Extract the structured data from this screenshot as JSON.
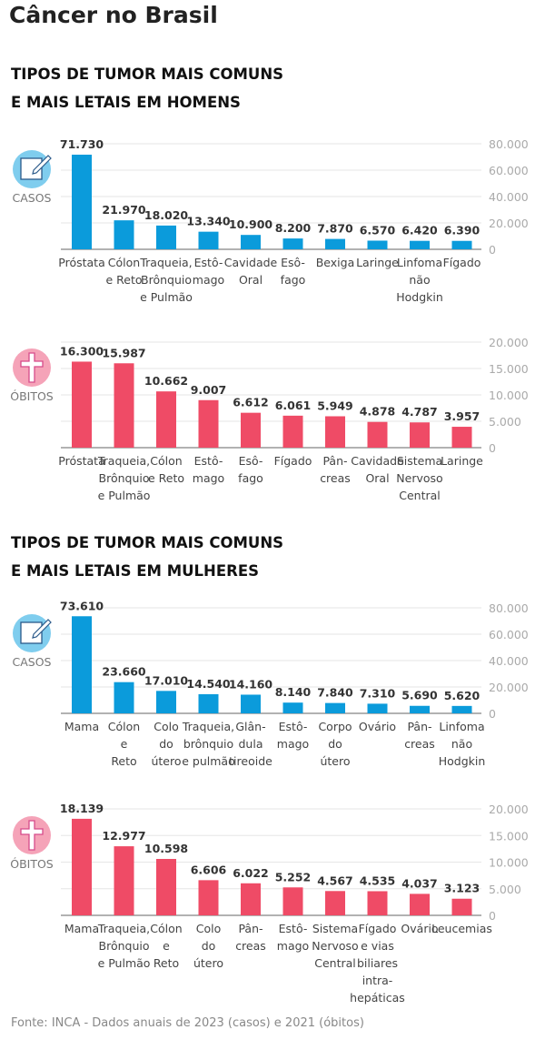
{
  "title": "Câncer no Brasil",
  "sections": [
    {
      "heading_line1": "TIPOS DE TUMOR MAIS COMUNS",
      "heading_line2": "E MAIS LETAIS EM HOMENS"
    },
    {
      "heading_line1": "TIPOS DE TUMOR MAIS COMUNS",
      "heading_line2": "E MAIS LETAIS EM MULHERES"
    }
  ],
  "source": "Fonte: INCA - Dados anuais de 2023 (casos) e 2021 (óbitos)",
  "colors": {
    "casos": "#0b9bdb",
    "obitos": "#ef4b66",
    "casos_icon": "#7fcdee",
    "obitos_icon": "#f5a3b8"
  },
  "chart_data": [
    {
      "type": "bar",
      "label": "CASOS",
      "icon": "notepad-pencil-icon",
      "color": "#0b9bdb",
      "ylim": [
        0,
        80000
      ],
      "yticks": [
        "0",
        "20.000",
        "40.000",
        "60.000",
        "80.000"
      ],
      "grid": true,
      "categories": [
        [
          "Próstata"
        ],
        [
          "Cólon",
          "e Reto"
        ],
        [
          "Traqueia,",
          "Brônquio",
          "e Pulmão"
        ],
        [
          "Estô-",
          "mago"
        ],
        [
          "Cavidade",
          "Oral"
        ],
        [
          "Esô-",
          "fago"
        ],
        [
          "Bexiga"
        ],
        [
          "Laringe"
        ],
        [
          "Linfoma",
          "não",
          "Hodgkin"
        ],
        [
          "Fígado"
        ]
      ],
      "values": [
        71730,
        21970,
        18020,
        13340,
        10900,
        8200,
        7870,
        6570,
        6420,
        6390
      ],
      "value_labels": [
        "71.730",
        "21.970",
        "18.020",
        "13.340",
        "10.900",
        "8.200",
        "7.870",
        "6.570",
        "6.420",
        "6.390"
      ]
    },
    {
      "type": "bar",
      "label": "ÓBITOS",
      "icon": "cross-icon",
      "color": "#ef4b66",
      "ylim": [
        0,
        20000
      ],
      "yticks": [
        "0",
        "5.000",
        "10.000",
        "15.000",
        "20.000"
      ],
      "grid": true,
      "categories": [
        [
          "Próstata"
        ],
        [
          "Traqueia,",
          "Brônquio",
          "e Pulmão"
        ],
        [
          "Cólon",
          "e Reto"
        ],
        [
          "Estô-",
          "mago"
        ],
        [
          "Esô-",
          "fago"
        ],
        [
          "Fígado"
        ],
        [
          "Pân-",
          "creas"
        ],
        [
          "Cavidade",
          "Oral"
        ],
        [
          "Sistema",
          "Nervoso",
          "Central"
        ],
        [
          "Laringe"
        ]
      ],
      "values": [
        16300,
        15987,
        10662,
        9007,
        6612,
        6061,
        5949,
        4878,
        4787,
        3957
      ],
      "value_labels": [
        "16.300",
        "15.987",
        "10.662",
        "9.007",
        "6.612",
        "6.061",
        "5.949",
        "4.878",
        "4.787",
        "3.957"
      ]
    },
    {
      "type": "bar",
      "label": "CASOS",
      "icon": "notepad-pencil-icon",
      "color": "#0b9bdb",
      "ylim": [
        0,
        80000
      ],
      "yticks": [
        "0",
        "20.000",
        "40.000",
        "60.000",
        "80.000"
      ],
      "grid": true,
      "categories": [
        [
          "Mama"
        ],
        [
          "Cólon",
          "e",
          "Reto"
        ],
        [
          "Colo",
          "do",
          "útero"
        ],
        [
          "Traqueia,",
          "brônquio",
          "e pulmão"
        ],
        [
          "Glân-",
          "dula",
          "tireoide"
        ],
        [
          "Estô-",
          "mago"
        ],
        [
          "Corpo",
          "do",
          "útero"
        ],
        [
          "Ovário"
        ],
        [
          "Pân-",
          "creas"
        ],
        [
          "Linfoma",
          "não",
          "Hodgkin"
        ]
      ],
      "values": [
        73610,
        23660,
        17010,
        14540,
        14160,
        8140,
        7840,
        7310,
        5690,
        5620
      ],
      "value_labels": [
        "73.610",
        "23.660",
        "17.010",
        "14.540",
        "14.160",
        "8.140",
        "7.840",
        "7.310",
        "5.690",
        "5.620"
      ]
    },
    {
      "type": "bar",
      "label": "ÓBITOS",
      "icon": "cross-icon",
      "color": "#ef4b66",
      "ylim": [
        0,
        20000
      ],
      "yticks": [
        "0",
        "5.000",
        "10.000",
        "15.000",
        "20.000"
      ],
      "grid": true,
      "categories": [
        [
          "Mama"
        ],
        [
          "Traqueia,",
          "Brônquio",
          "e Pulmão"
        ],
        [
          "Cólon",
          "e",
          "Reto"
        ],
        [
          "Colo",
          "do",
          "útero"
        ],
        [
          "Pân-",
          "creas"
        ],
        [
          "Estô-",
          "mago"
        ],
        [
          "Sistema",
          "Nervoso",
          "Central"
        ],
        [
          "Fígado",
          "e vias",
          "biliares",
          "intra-",
          "hepáticas"
        ],
        [
          "Ovário"
        ],
        [
          "Leucemias"
        ]
      ],
      "values": [
        18139,
        12977,
        10598,
        6606,
        6022,
        5252,
        4567,
        4535,
        4037,
        3123
      ],
      "value_labels": [
        "18.139",
        "12.977",
        "10.598",
        "6.606",
        "6.022",
        "5.252",
        "4.567",
        "4.535",
        "4.037",
        "3.123"
      ]
    }
  ]
}
